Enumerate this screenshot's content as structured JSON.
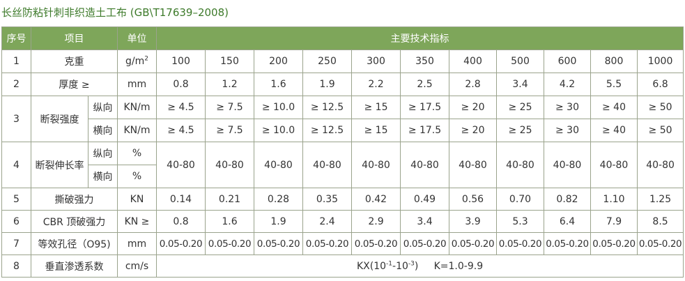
{
  "title": "长丝防粘针刺非织造土工布 (GB\\T17639–2008)",
  "header": {
    "no": "序号",
    "item": "项目",
    "unit": "单位",
    "spec": "主要技术指标"
  },
  "rows": {
    "weight": {
      "no": "1",
      "item": "克重",
      "unit_base": "g/m",
      "unit_sup": "2",
      "values": [
        "100",
        "150",
        "200",
        "250",
        "300",
        "350",
        "400",
        "500",
        "600",
        "800",
        "1000"
      ]
    },
    "thickness": {
      "no": "2",
      "item": "厚度 ≥",
      "unit": "mm",
      "values": [
        "0.8",
        "1.2",
        "1.6",
        "1.9",
        "2.2",
        "2.5",
        "2.8",
        "3.4",
        "4.2",
        "5.5",
        "6.8"
      ]
    },
    "breaking_strength": {
      "no": "3",
      "item": "断裂强度",
      "longitudinal": {
        "dir": "纵向",
        "unit": "KN/m",
        "values": [
          "≥ 4.5",
          "≥ 7.5",
          "≥ 10.0",
          "≥ 12.5",
          "≥ 15",
          "≥ 17.5",
          "≥ 20",
          "≥ 25",
          "≥ 30",
          "≥ 40",
          "≥ 50"
        ]
      },
      "transverse": {
        "dir": "横向",
        "unit": "KN/m",
        "values": [
          "≥ 4.5",
          "≥ 7.5",
          "≥ 10.0",
          "≥ 12.5",
          "≥ 15",
          "≥ 17.5",
          "≥ 20",
          "≥ 25",
          "≥ 30",
          "≥ 40",
          "≥ 50"
        ]
      }
    },
    "elongation": {
      "no": "4",
      "item": "断裂伸长率",
      "longitudinal": {
        "dir": "纵向",
        "unit": "%"
      },
      "transverse": {
        "dir": "横向",
        "unit": "%"
      },
      "values": [
        "40-80",
        "40-80",
        "40-80",
        "40-80",
        "40-80",
        "40-80",
        "40-80",
        "40-80",
        "40-80",
        "40-80",
        "40-80"
      ]
    },
    "tear": {
      "no": "5",
      "item": "撕破强力",
      "unit": "KN",
      "values": [
        "0.14",
        "0.21",
        "0.28",
        "0.35",
        "0.42",
        "0.49",
        "0.56",
        "0.70",
        "0.82",
        "1.10",
        "1.25"
      ]
    },
    "cbr": {
      "no": "6",
      "item": "CBR 顶破强力",
      "unit": "KN ≥",
      "values": [
        "0.8",
        "1.6",
        "1.9",
        "2.4",
        "2.9",
        "3.4",
        "3.9",
        "5.3",
        "6.4",
        "7.9",
        "8.5"
      ]
    },
    "aperture": {
      "no": "7",
      "item": "等效孔径（O95)",
      "unit": "mm",
      "values": [
        "0.05-0.20",
        "0.05-0.20",
        "0.05-0.20",
        "0.05-0.20",
        "0.05-0.20",
        "0.05-0.20",
        "0.05-0.20",
        "0.05-0.20",
        "0.05-0.20",
        "0.05-0.20",
        "0.05-0.20"
      ]
    },
    "permeability": {
      "no": "8",
      "item": "垂直渗透系数",
      "unit": "cm/s",
      "kx_prefix": "KX(10",
      "kx_exp1": "-1",
      "kx_mid": "-10",
      "kx_exp2": "-3",
      "kx_suffix": ")",
      "k_range": "K=1.0-9.9"
    }
  }
}
